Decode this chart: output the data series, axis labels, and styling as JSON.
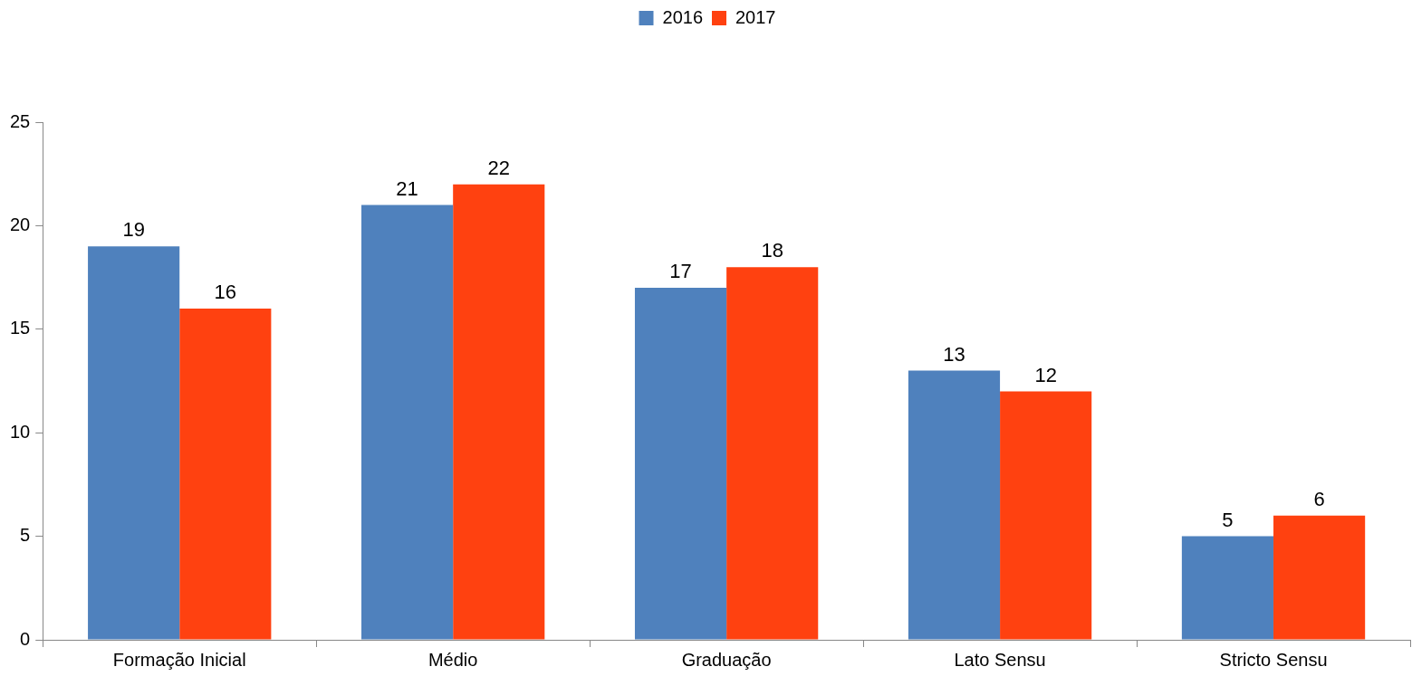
{
  "chart_data": {
    "type": "bar",
    "categories": [
      "Formação Inicial",
      "Médio",
      "Graduação",
      "Lato Sensu",
      "Stricto Sensu"
    ],
    "series": [
      {
        "name": "2016",
        "color": "#4f81bd",
        "values": [
          19,
          21,
          17,
          13,
          5
        ]
      },
      {
        "name": "2017",
        "color": "#ff4110",
        "values": [
          16,
          22,
          18,
          12,
          6
        ]
      }
    ],
    "ylim": [
      0,
      25
    ],
    "yticks": [
      0,
      5,
      10,
      15,
      20,
      25
    ],
    "grid": false,
    "legend": "top",
    "data_labels": true
  }
}
